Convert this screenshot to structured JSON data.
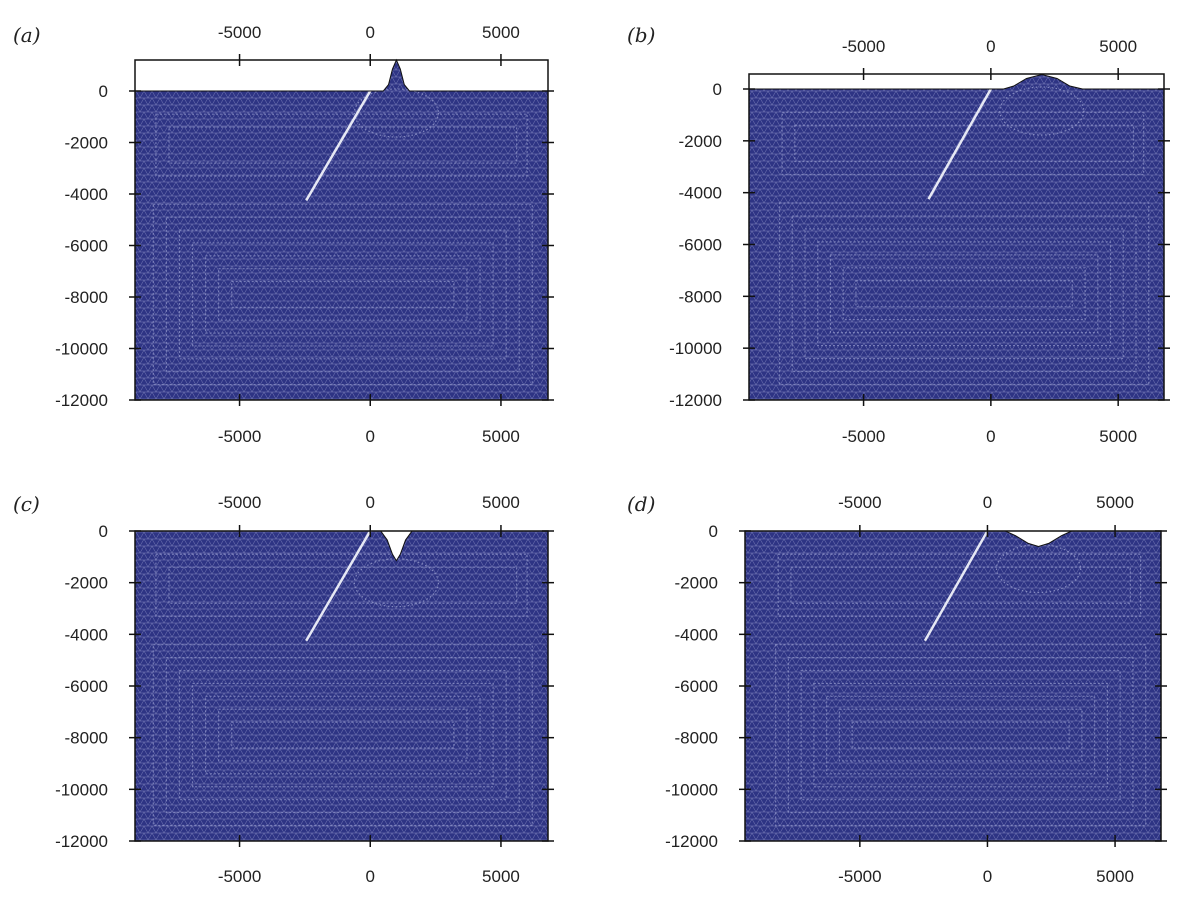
{
  "colors": {
    "mesh_fill": "#2e3484",
    "mesh_line": "#8e93c8",
    "fault": "#e6e8f4",
    "axis": "#111111",
    "text": "#222222"
  },
  "chart_data": [
    {
      "type": "mesh",
      "panel_label": "(a)",
      "xlim": [
        -9000,
        6800
      ],
      "ylim": [
        -12000,
        1200
      ],
      "x_ticks": [
        -5000,
        0,
        5000
      ],
      "x_tick_labels": [
        "-5000",
        "0",
        "5000"
      ],
      "y_ticks": [
        0,
        -2000,
        -4000,
        -6000,
        -8000,
        -10000,
        -12000
      ],
      "y_tick_labels": [
        "0",
        "-2000",
        "-4000",
        "-6000",
        "-8000",
        "-10000",
        "-12000"
      ],
      "fault": {
        "start": [
          0,
          0
        ],
        "end": [
          -2450,
          -4250
        ]
      },
      "surface": [
        [
          -9000,
          0
        ],
        [
          500,
          0
        ],
        [
          700,
          250
        ],
        [
          850,
          850
        ],
        [
          1000,
          1200
        ],
        [
          1150,
          850
        ],
        [
          1300,
          250
        ],
        [
          1500,
          0
        ],
        [
          6800,
          0
        ]
      ]
    },
    {
      "type": "mesh",
      "panel_label": "(b)",
      "xlim": [
        -9500,
        6800
      ],
      "ylim": [
        -12000,
        600
      ],
      "x_ticks": [
        -5000,
        0,
        5000
      ],
      "x_tick_labels": [
        "-5000",
        "0",
        "5000"
      ],
      "y_ticks": [
        0,
        -2000,
        -4000,
        -6000,
        -8000,
        -10000,
        -12000
      ],
      "y_tick_labels": [
        "0",
        "-2000",
        "-4000",
        "-6000",
        "-8000",
        "-10000",
        "-12000"
      ],
      "fault": {
        "start": [
          0,
          0
        ],
        "end": [
          -2450,
          -4250
        ]
      },
      "surface": [
        [
          -9500,
          0
        ],
        [
          500,
          0
        ],
        [
          900,
          120
        ],
        [
          1400,
          420
        ],
        [
          2000,
          580
        ],
        [
          2600,
          420
        ],
        [
          3100,
          120
        ],
        [
          3600,
          0
        ],
        [
          6800,
          0
        ]
      ]
    },
    {
      "type": "mesh",
      "panel_label": "(c)",
      "xlim": [
        -9000,
        6800
      ],
      "ylim": [
        -12000,
        0
      ],
      "x_ticks": [
        -5000,
        0,
        5000
      ],
      "x_tick_labels": [
        "-5000",
        "0",
        "5000"
      ],
      "y_ticks": [
        0,
        -2000,
        -4000,
        -6000,
        -8000,
        -10000,
        -12000
      ],
      "y_tick_labels": [
        "0",
        "-2000",
        "-4000",
        "-6000",
        "-8000",
        "-10000",
        "-12000"
      ],
      "fault": {
        "start": [
          0,
          0
        ],
        "end": [
          -2450,
          -4250
        ]
      },
      "surface": [
        [
          -9000,
          0
        ],
        [
          400,
          0
        ],
        [
          650,
          -350
        ],
        [
          850,
          -900
        ],
        [
          1000,
          -1150
        ],
        [
          1150,
          -900
        ],
        [
          1350,
          -350
        ],
        [
          1600,
          0
        ],
        [
          6800,
          0
        ]
      ]
    },
    {
      "type": "mesh",
      "panel_label": "(d)",
      "xlim": [
        -9500,
        6800
      ],
      "ylim": [
        -12000,
        0
      ],
      "x_ticks": [
        -5000,
        0,
        5000
      ],
      "x_tick_labels": [
        "-5000",
        "0",
        "5000"
      ],
      "y_ticks": [
        0,
        -2000,
        -4000,
        -6000,
        -8000,
        -10000,
        -12000
      ],
      "y_tick_labels": [
        "0",
        "-2000",
        "-4000",
        "-6000",
        "-8000",
        "-10000",
        "-12000"
      ],
      "fault": {
        "start": [
          0,
          0
        ],
        "end": [
          -2450,
          -4250
        ]
      },
      "surface": [
        [
          -9500,
          0
        ],
        [
          700,
          0
        ],
        [
          1100,
          -180
        ],
        [
          1600,
          -480
        ],
        [
          2000,
          -600
        ],
        [
          2400,
          -480
        ],
        [
          2900,
          -180
        ],
        [
          3300,
          0
        ],
        [
          6800,
          0
        ]
      ]
    }
  ]
}
